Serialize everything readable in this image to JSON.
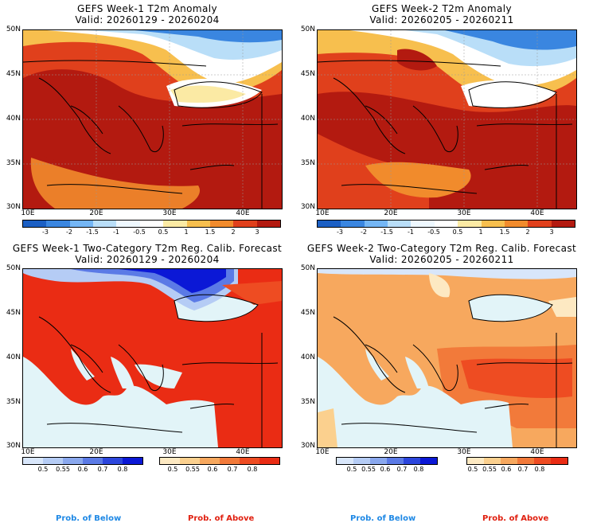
{
  "panels": [
    {
      "title_line1": "GEFS Week-1 T2m Anomaly",
      "title_line2": "Valid: 20260129 - 20260204",
      "kind": "anomaly",
      "lat_labels": [
        "50N",
        "45N",
        "40N",
        "35N",
        "30N"
      ],
      "lon_labels": [
        "10E",
        "20E",
        "30E",
        "40E"
      ]
    },
    {
      "title_line1": "GEFS Week-2 T2m Anomaly",
      "title_line2": "Valid: 20260205 - 20260211",
      "kind": "anomaly",
      "lat_labels": [
        "50N",
        "45N",
        "40N",
        "35N",
        "30N"
      ],
      "lon_labels": [
        "10E",
        "20E",
        "30E",
        "40E"
      ]
    },
    {
      "title_line1": "GEFS Week-1 Two-Category T2m Reg. Calib. Forecast",
      "title_line2": "Valid: 20260129 - 20260204",
      "kind": "prob",
      "lat_labels": [
        "50N",
        "45N",
        "40N",
        "35N",
        "30N"
      ],
      "lon_labels": [
        "10E",
        "20E",
        "30E",
        "40E"
      ]
    },
    {
      "title_line1": "GEFS Week-2 Two-Category T2m Reg. Calib. Forecast",
      "title_line2": "Valid: 20260205 - 20260211",
      "kind": "prob",
      "lat_labels": [
        "50N",
        "45N",
        "40N",
        "35N",
        "30N"
      ],
      "lon_labels": [
        "10E",
        "20E",
        "30E",
        "40E"
      ]
    }
  ],
  "anomaly_colorbar": {
    "labels": [
      "-3",
      "-2",
      "-1.5",
      "-1",
      "-0.5",
      "0.5",
      "1",
      "1.5",
      "2",
      "3"
    ],
    "colors": [
      "#1b5fc4",
      "#3a86e0",
      "#74b6f5",
      "#b9def8",
      "#eef8ff",
      "#ffffff",
      "#fbeaa4",
      "#f7bf4e",
      "#f18b2c",
      "#e0401c",
      "#b31a10"
    ]
  },
  "below_colorbar": {
    "labels": [
      "0.5",
      "0.55",
      "0.6",
      "0.7",
      "0.8"
    ],
    "colors": [
      "#d8e6fa",
      "#b5ccf5",
      "#8aa8ee",
      "#5b7ae6",
      "#2c46dd",
      "#0b18d6"
    ]
  },
  "above_colorbar": {
    "labels": [
      "0.5",
      "0.55",
      "0.6",
      "0.7",
      "0.8"
    ],
    "colors": [
      "#fde9c2",
      "#fbd08e",
      "#f7a85e",
      "#f27a3a",
      "#ee4c22",
      "#ea2c14"
    ]
  },
  "prob_labels": {
    "below": "Prob. of Below",
    "above": "Prob. of Above",
    "below_color": "#1e88e5",
    "above_color": "#e02010"
  },
  "map_colors": {
    "sea_prob": "#e2f4f8",
    "anom_hot": "#b31a10",
    "anom_warm": "#e0401c",
    "anom_mild": "#f18b2c",
    "anom_light": "#f7bf4e",
    "anom_white": "#ffffff",
    "anom_cold": "#3a86e0"
  }
}
